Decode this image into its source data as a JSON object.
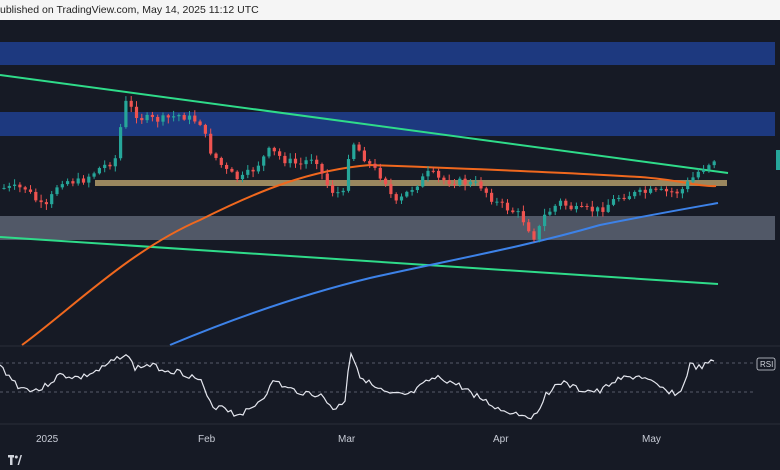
{
  "header": {
    "text": "ublished on TradingView.com, May 14, 2025 11:12 UTC"
  },
  "colors": {
    "background": "#161a25",
    "bull_candle": "#26a69a",
    "bear_candle": "#ef5350",
    "resistance_zone": "#1f3f8f",
    "support_zone": "#9aa3b8",
    "ma_short": "#f0681e",
    "ma_long": "#3d82e8",
    "trendline": "#2fdc8a",
    "gold_line": "#a89466",
    "rsi_line": "#e4e6ee"
  },
  "chart_data": {
    "type": "candlestick",
    "x_axis_labels": [
      "2025",
      "Feb",
      "Mar",
      "Apr",
      "May"
    ],
    "oscillator_label": "RSI",
    "icons": [
      "tradingview-logo"
    ]
  }
}
